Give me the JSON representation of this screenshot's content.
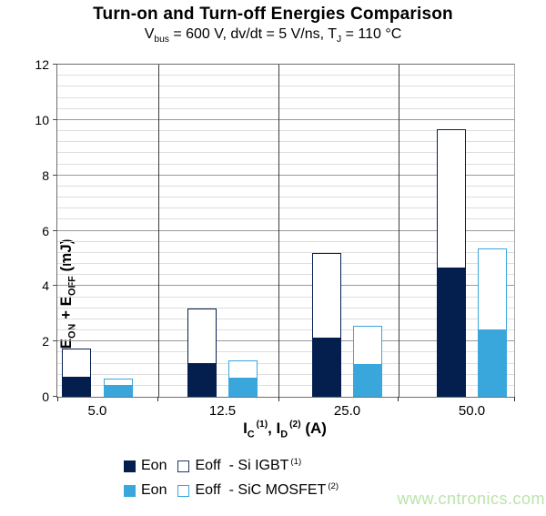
{
  "title": "Turn-on and Turn-off Energies Comparison",
  "subtitle": {
    "p1": "V",
    "s1": "bus",
    "p2": " = 600 V, dv/dt = 5 V/ns, T",
    "s2": "J",
    "p3": " = 110 °C"
  },
  "y_axis": {
    "label": {
      "p1": "E",
      "s1": "ON",
      "p2": " + E",
      "s2": "OFF",
      "p3": " (mJ)"
    },
    "ticks": [
      "0",
      "2",
      "4",
      "6",
      "8",
      "10",
      "12"
    ]
  },
  "x_axis": {
    "label": {
      "p1": "I",
      "s1": "C",
      "sup1": "(1)",
      "p2": ", I",
      "s2": "D",
      "sup2": "(2)",
      "p3": " (A)"
    }
  },
  "legend": {
    "rows": [
      {
        "eon": "Eon",
        "eoff": "Eoff",
        "series": "- Si IGBT",
        "sup": "(1)",
        "fill": "#041F4E",
        "border": "#1F3864"
      },
      {
        "eon": "Eon",
        "eoff": "Eoff",
        "series": "- SiC MOSFET",
        "sup": "(2)",
        "fill": "#3AA7DC",
        "border": "#3AA7DC"
      }
    ]
  },
  "watermark": {
    "text": "www.cntronics.com",
    "color": "#BCE3AB"
  },
  "colors": {
    "igbt_navy": "#041F4E",
    "igbt_navy_border": "#1F3864",
    "sic_blue": "#3AA7DC",
    "eoff_fill": "#FFFFFF",
    "minor_grid": "#DEDEDE",
    "major_grid": "#9A9A9A",
    "separator": "#3C3C3C"
  },
  "chart_data": {
    "type": "bar",
    "stacked": true,
    "title": "Turn-on and Turn-off Energies Comparison",
    "subtitle": "Vbus = 600 V, dv/dt = 5 V/ns, TJ = 110 °C",
    "xlabel": "IC (1), ID (2) (A)",
    "ylabel": "EON + EOFF (mJ)",
    "categories": [
      "5.0",
      "12.5",
      "25.0",
      "50.0"
    ],
    "series": [
      {
        "name": "Eon - Si IGBT (1)",
        "values": [
          0.7,
          1.2,
          2.1,
          4.65
        ],
        "fill": "#041F4E",
        "border": "#041F4E"
      },
      {
        "name": "Eoff - Si IGBT (1)",
        "values": [
          1.05,
          2.0,
          3.1,
          5.0
        ],
        "fill": "#FFFFFF",
        "border": "#041F4E"
      },
      {
        "name": "Eon - SiC MOSFET (2)",
        "values": [
          0.4,
          0.65,
          1.15,
          2.4
        ],
        "fill": "#3AA7DC",
        "border": "#3AA7DC"
      },
      {
        "name": "Eoff - SiC MOSFET (2)",
        "values": [
          0.25,
          0.65,
          1.4,
          2.95
        ],
        "fill": "#FFFFFF",
        "border": "#3AA7DC"
      }
    ],
    "stack_totals": {
      "si_igbt": [
        1.75,
        3.2,
        5.2,
        9.65
      ],
      "sic_mosfet": [
        0.65,
        1.3,
        2.55,
        5.35
      ]
    },
    "ylim": [
      0,
      12
    ],
    "y_major_unit": 2,
    "y_minor_unit": 0.4,
    "grid": true,
    "legend_position": "bottom"
  }
}
